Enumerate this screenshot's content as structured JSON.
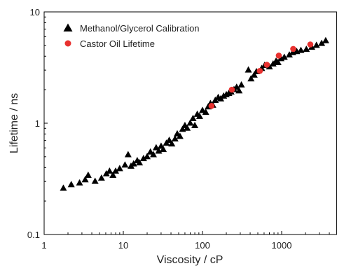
{
  "chart_data": {
    "type": "scatter",
    "title": "",
    "xlabel": "Viscosity / cP",
    "ylabel": "Lifetime / ns",
    "xscale": "log",
    "yscale": "log",
    "xlim": [
      1,
      5000
    ],
    "ylim": [
      0.1,
      10
    ],
    "x_ticks": [
      {
        "value": 1,
        "label": "1"
      },
      {
        "value": 10,
        "label": "10"
      },
      {
        "value": 100,
        "label": "100"
      },
      {
        "value": 1000,
        "label": "1000"
      }
    ],
    "y_ticks": [
      {
        "value": 0.1,
        "label": "0.1"
      },
      {
        "value": 1,
        "label": "1"
      },
      {
        "value": 10,
        "label": "10"
      }
    ],
    "grid": false,
    "legend_position": "top-left",
    "series": [
      {
        "name": "Methanol/Glycerol Calibration",
        "marker": "triangle",
        "color": "#000000",
        "points": [
          [
            1.75,
            0.26
          ],
          [
            2.2,
            0.28
          ],
          [
            2.8,
            0.29
          ],
          [
            3.3,
            0.31
          ],
          [
            3.6,
            0.34
          ],
          [
            4.4,
            0.3
          ],
          [
            5.3,
            0.32
          ],
          [
            6.1,
            0.35
          ],
          [
            6.7,
            0.37
          ],
          [
            7.4,
            0.34
          ],
          [
            8.0,
            0.37
          ],
          [
            9.0,
            0.39
          ],
          [
            10.5,
            0.42
          ],
          [
            11.5,
            0.52
          ],
          [
            12.5,
            0.41
          ],
          [
            13.5,
            0.43
          ],
          [
            15,
            0.46
          ],
          [
            16,
            0.44
          ],
          [
            18,
            0.48
          ],
          [
            20,
            0.5
          ],
          [
            22,
            0.55
          ],
          [
            24,
            0.52
          ],
          [
            26,
            0.6
          ],
          [
            28,
            0.56
          ],
          [
            30,
            0.62
          ],
          [
            32,
            0.58
          ],
          [
            35,
            0.66
          ],
          [
            38,
            0.7
          ],
          [
            41,
            0.65
          ],
          [
            45,
            0.72
          ],
          [
            48,
            0.8
          ],
          [
            52,
            0.76
          ],
          [
            56,
            0.88
          ],
          [
            60,
            0.95
          ],
          [
            64,
            0.9
          ],
          [
            70,
            1.0
          ],
          [
            76,
            1.1
          ],
          [
            80,
            0.95
          ],
          [
            86,
            1.2
          ],
          [
            92,
            1.15
          ],
          [
            100,
            1.3
          ],
          [
            110,
            1.25
          ],
          [
            118,
            1.4
          ],
          [
            126,
            1.5
          ],
          [
            135,
            1.45
          ],
          [
            145,
            1.6
          ],
          [
            158,
            1.7
          ],
          [
            170,
            1.65
          ],
          [
            185,
            1.75
          ],
          [
            200,
            1.8
          ],
          [
            215,
            1.85
          ],
          [
            230,
            1.9
          ],
          [
            250,
            2.0
          ],
          [
            270,
            2.1
          ],
          [
            290,
            1.95
          ],
          [
            310,
            2.2
          ],
          [
            380,
            3.0
          ],
          [
            410,
            2.5
          ],
          [
            450,
            2.7
          ],
          [
            480,
            2.9
          ],
          [
            560,
            3.1
          ],
          [
            610,
            3.3
          ],
          [
            700,
            3.2
          ],
          [
            780,
            3.4
          ],
          [
            850,
            3.6
          ],
          [
            900,
            3.5
          ],
          [
            980,
            3.8
          ],
          [
            1080,
            3.9
          ],
          [
            1250,
            4.1
          ],
          [
            1380,
            4.3
          ],
          [
            1550,
            4.4
          ],
          [
            1750,
            4.5
          ],
          [
            2050,
            4.6
          ],
          [
            2400,
            4.8
          ],
          [
            2750,
            5.0
          ],
          [
            3200,
            5.2
          ],
          [
            3600,
            5.5
          ]
        ]
      },
      {
        "name": "Castor Oil Lifetime",
        "marker": "circle",
        "color": "#e8312f",
        "points": [
          [
            130,
            1.43
          ],
          [
            235,
            2.0
          ],
          [
            530,
            2.95
          ],
          [
            650,
            3.35
          ],
          [
            920,
            4.05
          ],
          [
            1400,
            4.65
          ],
          [
            2300,
            5.1
          ]
        ]
      }
    ]
  }
}
